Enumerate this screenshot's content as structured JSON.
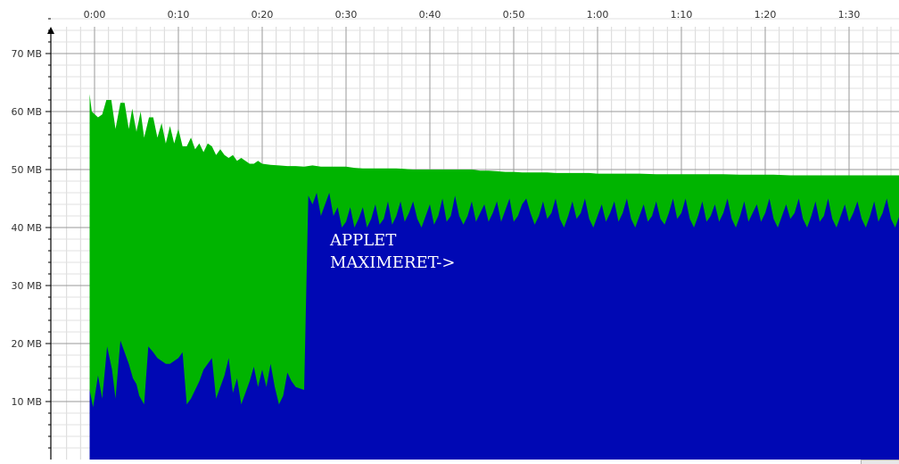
{
  "chart_data": {
    "type": "area",
    "title": "",
    "xlabel": "",
    "ylabel": "",
    "y_unit": "MB",
    "ylim": [
      0,
      80
    ],
    "x_range_seconds": [
      0,
      5800
    ],
    "x_ticks": [
      {
        "t": 0,
        "label": "0:00"
      },
      {
        "t": 600,
        "label": "0:10"
      },
      {
        "t": 1200,
        "label": "0:20"
      },
      {
        "t": 1800,
        "label": "0:30"
      },
      {
        "t": 2400,
        "label": "0:40"
      },
      {
        "t": 3000,
        "label": "0:50"
      },
      {
        "t": 3600,
        "label": "1:00"
      },
      {
        "t": 4200,
        "label": "1:10"
      },
      {
        "t": 4800,
        "label": "1:20"
      },
      {
        "t": 5400,
        "label": "1:30"
      }
    ],
    "y_ticks": [
      {
        "v": 10,
        "label": "10 MB"
      },
      {
        "v": 20,
        "label": "20 MB"
      },
      {
        "v": 30,
        "label": "30 MB"
      },
      {
        "v": 40,
        "label": "40 MB"
      },
      {
        "v": 50,
        "label": "50 MB"
      },
      {
        "v": 60,
        "label": "60 MB"
      },
      {
        "v": 70,
        "label": "70 MB"
      }
    ],
    "grid": true,
    "series": [
      {
        "color": "#00b400",
        "points": [
          [
            -35,
            63
          ],
          [
            -20,
            60
          ],
          [
            25,
            59
          ],
          [
            55,
            59.5
          ],
          [
            85,
            62
          ],
          [
            120,
            62
          ],
          [
            150,
            57
          ],
          [
            185,
            61.5
          ],
          [
            215,
            61.5
          ],
          [
            245,
            57
          ],
          [
            270,
            60.5
          ],
          [
            300,
            56.5
          ],
          [
            330,
            60
          ],
          [
            355,
            55.5
          ],
          [
            390,
            59
          ],
          [
            420,
            59
          ],
          [
            450,
            55.5
          ],
          [
            480,
            58
          ],
          [
            510,
            54.5
          ],
          [
            540,
            57.5
          ],
          [
            570,
            54.5
          ],
          [
            600,
            57
          ],
          [
            630,
            54
          ],
          [
            660,
            54
          ],
          [
            690,
            55.5
          ],
          [
            720,
            53.5
          ],
          [
            750,
            54.5
          ],
          [
            780,
            53
          ],
          [
            810,
            54.5
          ],
          [
            840,
            54
          ],
          [
            870,
            52.5
          ],
          [
            900,
            53.5
          ],
          [
            930,
            52.5
          ],
          [
            960,
            52
          ],
          [
            990,
            52.5
          ],
          [
            1020,
            51.5
          ],
          [
            1050,
            52
          ],
          [
            1080,
            51.5
          ],
          [
            1110,
            51
          ],
          [
            1140,
            51
          ],
          [
            1170,
            51.5
          ],
          [
            1200,
            51
          ],
          [
            1260,
            50.8
          ],
          [
            1320,
            50.7
          ],
          [
            1380,
            50.6
          ],
          [
            1440,
            50.6
          ],
          [
            1500,
            50.5
          ],
          [
            1560,
            50.7
          ],
          [
            1620,
            50.5
          ],
          [
            1680,
            50.5
          ],
          [
            1740,
            50.5
          ],
          [
            1800,
            50.5
          ],
          [
            1860,
            50.3
          ],
          [
            1920,
            50.2
          ],
          [
            1980,
            50.2
          ],
          [
            2040,
            50.2
          ],
          [
            2100,
            50.2
          ],
          [
            2160,
            50.2
          ],
          [
            2220,
            50.1
          ],
          [
            2280,
            50
          ],
          [
            2340,
            50
          ],
          [
            2400,
            50
          ],
          [
            2460,
            50
          ],
          [
            2520,
            50
          ],
          [
            2580,
            50
          ],
          [
            2640,
            50
          ],
          [
            2700,
            50
          ],
          [
            2760,
            49.8
          ],
          [
            2820,
            49.8
          ],
          [
            2880,
            49.7
          ],
          [
            2940,
            49.6
          ],
          [
            3000,
            49.6
          ],
          [
            3060,
            49.5
          ],
          [
            3120,
            49.5
          ],
          [
            3180,
            49.5
          ],
          [
            3240,
            49.5
          ],
          [
            3300,
            49.4
          ],
          [
            3360,
            49.4
          ],
          [
            3420,
            49.4
          ],
          [
            3480,
            49.4
          ],
          [
            3540,
            49.4
          ],
          [
            3600,
            49.3
          ],
          [
            3660,
            49.3
          ],
          [
            3720,
            49.3
          ],
          [
            3780,
            49.3
          ],
          [
            3900,
            49.3
          ],
          [
            4020,
            49.2
          ],
          [
            4140,
            49.2
          ],
          [
            4260,
            49.2
          ],
          [
            4380,
            49.2
          ],
          [
            4500,
            49.2
          ],
          [
            4620,
            49.1
          ],
          [
            4740,
            49.1
          ],
          [
            4860,
            49.1
          ],
          [
            4980,
            49
          ],
          [
            5100,
            49
          ],
          [
            5220,
            49
          ],
          [
            5340,
            49
          ],
          [
            5460,
            49
          ],
          [
            5580,
            49
          ],
          [
            5700,
            49
          ],
          [
            5800,
            49
          ]
        ]
      },
      {
        "color": "#0008b4",
        "points": [
          [
            -35,
            12
          ],
          [
            -10,
            9
          ],
          [
            25,
            14.5
          ],
          [
            55,
            10.5
          ],
          [
            90,
            19.5
          ],
          [
            125,
            15.5
          ],
          [
            150,
            10.5
          ],
          [
            185,
            20.5
          ],
          [
            215,
            18.5
          ],
          [
            245,
            16.5
          ],
          [
            275,
            14
          ],
          [
            300,
            13
          ],
          [
            320,
            11
          ],
          [
            355,
            9.5
          ],
          [
            385,
            19.5
          ],
          [
            420,
            18.5
          ],
          [
            450,
            17.5
          ],
          [
            480,
            17
          ],
          [
            510,
            16.5
          ],
          [
            540,
            16.5
          ],
          [
            570,
            17
          ],
          [
            600,
            17.5
          ],
          [
            630,
            18.5
          ],
          [
            660,
            9.5
          ],
          [
            690,
            10.5
          ],
          [
            720,
            12
          ],
          [
            750,
            13.5
          ],
          [
            780,
            15.5
          ],
          [
            810,
            16.5
          ],
          [
            840,
            17.5
          ],
          [
            870,
            10.5
          ],
          [
            900,
            12.5
          ],
          [
            930,
            14.5
          ],
          [
            960,
            17.5
          ],
          [
            990,
            11.5
          ],
          [
            1020,
            14
          ],
          [
            1050,
            9.5
          ],
          [
            1080,
            11.5
          ],
          [
            1110,
            13.5
          ],
          [
            1140,
            16
          ],
          [
            1170,
            12.5
          ],
          [
            1200,
            15.5
          ],
          [
            1230,
            12.5
          ],
          [
            1260,
            16.5
          ],
          [
            1290,
            12.5
          ],
          [
            1320,
            9.5
          ],
          [
            1350,
            11
          ],
          [
            1380,
            15
          ],
          [
            1410,
            13.5
          ],
          [
            1440,
            12.5
          ],
          [
            1500,
            12
          ],
          [
            1530,
            45.5
          ],
          [
            1560,
            44
          ],
          [
            1590,
            46
          ],
          [
            1620,
            42
          ],
          [
            1650,
            44
          ],
          [
            1680,
            46
          ],
          [
            1710,
            42
          ],
          [
            1740,
            43.5
          ],
          [
            1770,
            40
          ],
          [
            1800,
            41
          ],
          [
            1830,
            43.5
          ],
          [
            1860,
            40
          ],
          [
            1890,
            41.5
          ],
          [
            1920,
            43.5
          ],
          [
            1950,
            40
          ],
          [
            1980,
            41.5
          ],
          [
            2010,
            44
          ],
          [
            2040,
            40.5
          ],
          [
            2070,
            41.5
          ],
          [
            2100,
            44.5
          ],
          [
            2130,
            40.5
          ],
          [
            2160,
            42
          ],
          [
            2190,
            44.5
          ],
          [
            2220,
            41
          ],
          [
            2250,
            42.5
          ],
          [
            2280,
            44.5
          ],
          [
            2310,
            41.5
          ],
          [
            2340,
            40
          ],
          [
            2370,
            42
          ],
          [
            2400,
            44
          ],
          [
            2430,
            40.5
          ],
          [
            2460,
            42
          ],
          [
            2490,
            45
          ],
          [
            2520,
            41
          ],
          [
            2550,
            42
          ],
          [
            2580,
            45.5
          ],
          [
            2610,
            42
          ],
          [
            2640,
            40.5
          ],
          [
            2670,
            42
          ],
          [
            2700,
            44.5
          ],
          [
            2730,
            41
          ],
          [
            2760,
            42.5
          ],
          [
            2790,
            44
          ],
          [
            2820,
            41
          ],
          [
            2850,
            42.5
          ],
          [
            2880,
            44.5
          ],
          [
            2910,
            41
          ],
          [
            2940,
            43
          ],
          [
            2970,
            45
          ],
          [
            3000,
            41
          ],
          [
            3030,
            42
          ],
          [
            3060,
            44
          ],
          [
            3090,
            45
          ],
          [
            3120,
            42.5
          ],
          [
            3150,
            40.5
          ],
          [
            3180,
            42
          ],
          [
            3210,
            44.5
          ],
          [
            3240,
            41.5
          ],
          [
            3270,
            42.5
          ],
          [
            3300,
            45
          ],
          [
            3330,
            41.5
          ],
          [
            3360,
            40
          ],
          [
            3390,
            42
          ],
          [
            3420,
            44.5
          ],
          [
            3450,
            41.5
          ],
          [
            3480,
            42.5
          ],
          [
            3510,
            45
          ],
          [
            3540,
            41.5
          ],
          [
            3570,
            40
          ],
          [
            3600,
            42
          ],
          [
            3630,
            44
          ],
          [
            3660,
            41
          ],
          [
            3690,
            42.5
          ],
          [
            3720,
            44.5
          ],
          [
            3750,
            41
          ],
          [
            3780,
            42.5
          ],
          [
            3810,
            45
          ],
          [
            3840,
            41.5
          ],
          [
            3870,
            40
          ],
          [
            3900,
            42
          ],
          [
            3930,
            44
          ],
          [
            3960,
            41
          ],
          [
            3990,
            42
          ],
          [
            4020,
            44.5
          ],
          [
            4050,
            41.5
          ],
          [
            4080,
            40.5
          ],
          [
            4110,
            42.5
          ],
          [
            4140,
            45
          ],
          [
            4170,
            41.5
          ],
          [
            4200,
            42.5
          ],
          [
            4230,
            45
          ],
          [
            4260,
            41.5
          ],
          [
            4290,
            40
          ],
          [
            4320,
            42
          ],
          [
            4350,
            44.5
          ],
          [
            4380,
            41
          ],
          [
            4410,
            42
          ],
          [
            4440,
            44
          ],
          [
            4470,
            41
          ],
          [
            4500,
            42.5
          ],
          [
            4530,
            45
          ],
          [
            4560,
            41.5
          ],
          [
            4590,
            40
          ],
          [
            4620,
            42
          ],
          [
            4650,
            44.5
          ],
          [
            4680,
            41
          ],
          [
            4710,
            42.5
          ],
          [
            4740,
            44
          ],
          [
            4770,
            41
          ],
          [
            4800,
            42.5
          ],
          [
            4830,
            45
          ],
          [
            4860,
            41.5
          ],
          [
            4890,
            40
          ],
          [
            4920,
            42
          ],
          [
            4950,
            44
          ],
          [
            4980,
            41.5
          ],
          [
            5010,
            42.5
          ],
          [
            5040,
            45
          ],
          [
            5070,
            41.5
          ],
          [
            5100,
            40
          ],
          [
            5130,
            42
          ],
          [
            5160,
            44.5
          ],
          [
            5190,
            41
          ],
          [
            5220,
            42
          ],
          [
            5250,
            45
          ],
          [
            5280,
            41.5
          ],
          [
            5310,
            40
          ],
          [
            5340,
            42
          ],
          [
            5370,
            44
          ],
          [
            5400,
            41
          ],
          [
            5430,
            42.5
          ],
          [
            5460,
            44.5
          ],
          [
            5490,
            41.5
          ],
          [
            5520,
            40
          ],
          [
            5550,
            42
          ],
          [
            5580,
            44.5
          ],
          [
            5610,
            41
          ],
          [
            5640,
            42.5
          ],
          [
            5670,
            45
          ],
          [
            5700,
            41.5
          ],
          [
            5730,
            40
          ],
          [
            5760,
            42
          ],
          [
            5800,
            43
          ]
        ]
      }
    ],
    "annotations": [
      {
        "line1": "APPLET",
        "line2": "MAXIMERET->",
        "t": 1710,
        "v": 37
      }
    ]
  }
}
